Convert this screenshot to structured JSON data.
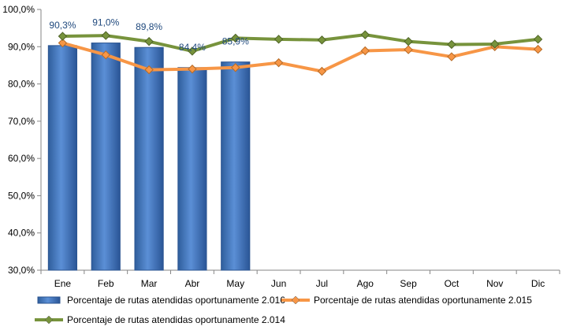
{
  "chart_data": {
    "type": "bar",
    "categories": [
      "Ene",
      "Feb",
      "Mar",
      "Abr",
      "May",
      "Jun",
      "Jul",
      "Ago",
      "Sep",
      "Oct",
      "Nov",
      "Dic"
    ],
    "y_ticks": [
      "30,0%",
      "40,0%",
      "50,0%",
      "60,0%",
      "70,0%",
      "80,0%",
      "90,0%",
      "100,0%"
    ],
    "ylim": [
      30,
      100
    ],
    "grid": false,
    "legend_position": "bottom",
    "series": [
      {
        "name": "Porcentaje de rutas atendidas oportunamente 2.016",
        "type": "bar",
        "color": "#4F81BD",
        "values": [
          90.3,
          91.0,
          89.8,
          84.4,
          85.9,
          null,
          null,
          null,
          null,
          null,
          null,
          null
        ],
        "data_labels": [
          "90,3%",
          "91,0%",
          "89,8%",
          "84,4%",
          "85,9%"
        ]
      },
      {
        "name": "Porcentaje de rutas atendidas oportunamente 2.015",
        "type": "line",
        "color": "#F79646",
        "values": [
          91.0,
          87.8,
          83.8,
          84.0,
          84.4,
          85.7,
          83.4,
          88.9,
          89.2,
          87.3,
          90.0,
          89.3
        ]
      },
      {
        "name": "Porcentaje de rutas atendidas oportunamente 2.014",
        "type": "line",
        "color": "#77933C",
        "values": [
          92.8,
          93.0,
          91.4,
          88.8,
          92.3,
          92.0,
          91.8,
          93.2,
          91.4,
          90.6,
          90.7,
          92.0
        ]
      }
    ]
  }
}
